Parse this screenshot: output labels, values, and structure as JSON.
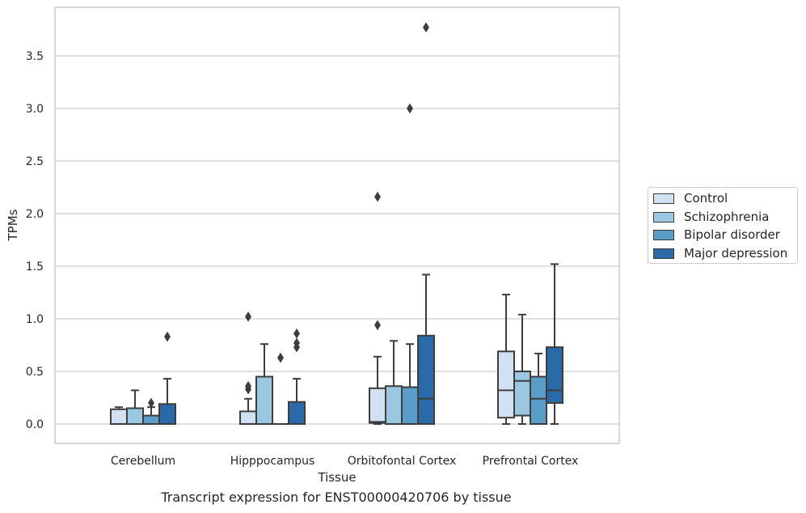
{
  "chart_data": {
    "type": "box",
    "title": "Transcript expression for ENST00000420706 by tissue",
    "xlabel": "Tissue",
    "ylabel": "TPMs",
    "ylim": [
      -0.18,
      3.97
    ],
    "yticks": [
      "0.0",
      "0.5",
      "1.0",
      "1.5",
      "2.0",
      "2.5",
      "3.0",
      "3.5"
    ],
    "grid": true,
    "legend_position": "right",
    "categories": [
      "Cerebellum",
      "Hipppocampus",
      "Orbitofontal Cortex",
      "Prefrontal Cortex"
    ],
    "series": [
      {
        "name": "Control",
        "color": "#d0e1f2",
        "boxes": [
          {
            "min": 0.0,
            "q1": 0.0,
            "median": 0.0,
            "q3": 0.14,
            "max": 0.16,
            "outliers": []
          },
          {
            "min": 0.0,
            "q1": 0.0,
            "median": 0.0,
            "q3": 0.12,
            "max": 0.24,
            "outliers": [
              0.33,
              0.36,
              1.02
            ]
          },
          {
            "min": 0.0,
            "q1": 0.01,
            "median": 0.02,
            "q3": 0.34,
            "max": 0.64,
            "outliers": [
              0.94,
              2.16
            ]
          },
          {
            "min": 0.0,
            "q1": 0.06,
            "median": 0.32,
            "q3": 0.69,
            "max": 1.23,
            "outliers": []
          }
        ]
      },
      {
        "name": "Schizophrenia",
        "color": "#9ac8e0",
        "boxes": [
          {
            "min": 0.0,
            "q1": 0.0,
            "median": 0.0,
            "q3": 0.15,
            "max": 0.32,
            "outliers": []
          },
          {
            "min": 0.0,
            "q1": 0.0,
            "median": 0.0,
            "q3": 0.45,
            "max": 0.76,
            "outliers": []
          },
          {
            "min": 0.0,
            "q1": 0.0,
            "median": 0.0,
            "q3": 0.36,
            "max": 0.79,
            "outliers": []
          },
          {
            "min": 0.0,
            "q1": 0.08,
            "median": 0.41,
            "q3": 0.5,
            "max": 1.04,
            "outliers": []
          }
        ]
      },
      {
        "name": "Bipolar disorder",
        "color": "#5a9dc9",
        "boxes": [
          {
            "min": 0.0,
            "q1": 0.0,
            "median": 0.0,
            "q3": 0.08,
            "max": 0.16,
            "outliers": [
              0.2
            ]
          },
          {
            "min": 0.0,
            "q1": 0.0,
            "median": 0.0,
            "q3": 0.0,
            "max": 0.0,
            "outliers": [
              0.63
            ]
          },
          {
            "min": 0.0,
            "q1": 0.0,
            "median": 0.0,
            "q3": 0.35,
            "max": 0.76,
            "outliers": [
              3.0
            ]
          },
          {
            "min": 0.0,
            "q1": 0.0,
            "median": 0.24,
            "q3": 0.45,
            "max": 0.67,
            "outliers": []
          }
        ]
      },
      {
        "name": "Major depression",
        "color": "#2a6aa8",
        "boxes": [
          {
            "min": 0.0,
            "q1": 0.0,
            "median": 0.0,
            "q3": 0.19,
            "max": 0.43,
            "outliers": [
              0.83
            ]
          },
          {
            "min": 0.0,
            "q1": 0.0,
            "median": 0.0,
            "q3": 0.21,
            "max": 0.43,
            "outliers": [
              0.73,
              0.77,
              0.86
            ]
          },
          {
            "min": 0.0,
            "q1": 0.0,
            "median": 0.24,
            "q3": 0.84,
            "max": 1.42,
            "outliers": [
              3.77
            ]
          },
          {
            "min": 0.0,
            "q1": 0.2,
            "median": 0.32,
            "q3": 0.73,
            "max": 1.52,
            "outliers": []
          }
        ]
      }
    ]
  }
}
